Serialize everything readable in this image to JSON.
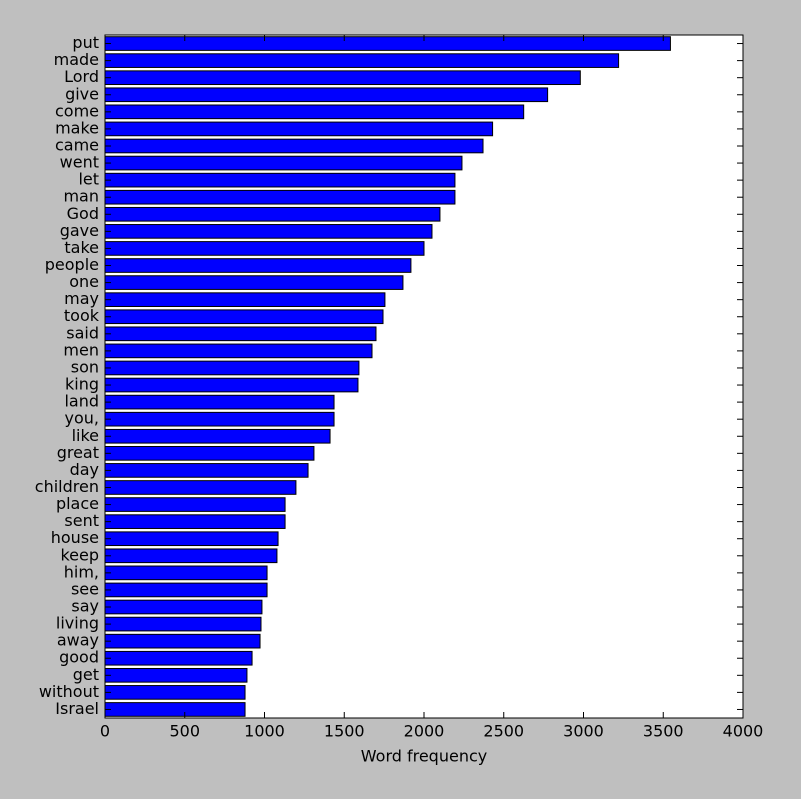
{
  "chart_data": {
    "type": "barh",
    "xlabel": "Word frequency",
    "categories": [
      "put",
      "made",
      "Lord",
      "give",
      "come",
      "make",
      "came",
      "went",
      "let",
      "man",
      "God",
      "gave",
      "take",
      "people",
      "one",
      "may",
      "took",
      "said",
      "men",
      "son",
      "king",
      "land",
      "you,",
      "like",
      "great",
      "day",
      "children",
      "place",
      "sent",
      "house",
      "keep",
      "him,",
      "see",
      "say",
      "living",
      "away",
      "good",
      "get",
      "without",
      "Israel"
    ],
    "values": [
      3545,
      3220,
      2980,
      2775,
      2625,
      2430,
      2370,
      2238,
      2194,
      2194,
      2100,
      2050,
      2000,
      1918,
      1868,
      1755,
      1743,
      1699,
      1674,
      1592,
      1586,
      1436,
      1436,
      1411,
      1310,
      1273,
      1197,
      1129,
      1129,
      1085,
      1078,
      1016,
      1016,
      984,
      978,
      972,
      922,
      890,
      878,
      878
    ],
    "color": "#0000ff",
    "xlim": [
      0,
      4000
    ],
    "xticks": [
      0,
      500,
      1000,
      1500,
      2000,
      2500,
      3000,
      3500,
      4000
    ]
  }
}
